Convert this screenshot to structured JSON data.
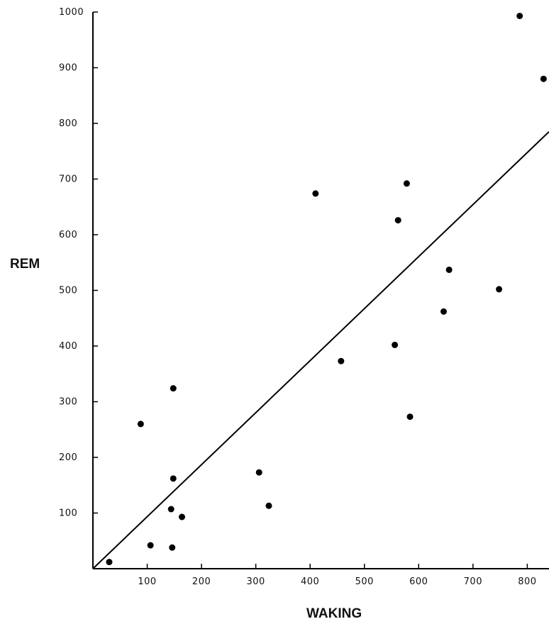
{
  "chart_data": {
    "type": "scatter",
    "title": "",
    "xlabel": "WAKING",
    "ylabel": "REM",
    "xlim": [
      0,
      840
    ],
    "ylim": [
      0,
      1000
    ],
    "xticks": [
      100,
      200,
      300,
      400,
      500,
      600,
      700,
      800
    ],
    "yticks": [
      100,
      200,
      300,
      400,
      500,
      600,
      700,
      800,
      900,
      1000
    ],
    "grid": false,
    "legend": "none",
    "points": [
      {
        "x": 30,
        "y": 12
      },
      {
        "x": 88,
        "y": 260
      },
      {
        "x": 106,
        "y": 42
      },
      {
        "x": 144,
        "y": 107
      },
      {
        "x": 146,
        "y": 38
      },
      {
        "x": 148,
        "y": 162
      },
      {
        "x": 148,
        "y": 324
      },
      {
        "x": 164,
        "y": 93
      },
      {
        "x": 306,
        "y": 173
      },
      {
        "x": 324,
        "y": 113
      },
      {
        "x": 410,
        "y": 674
      },
      {
        "x": 457,
        "y": 373
      },
      {
        "x": 556,
        "y": 402
      },
      {
        "x": 562,
        "y": 626
      },
      {
        "x": 578,
        "y": 692
      },
      {
        "x": 584,
        "y": 273
      },
      {
        "x": 646,
        "y": 462
      },
      {
        "x": 656,
        "y": 537
      },
      {
        "x": 748,
        "y": 502
      },
      {
        "x": 786,
        "y": 993
      },
      {
        "x": 830,
        "y": 880
      }
    ],
    "fit_line": {
      "x": [
        0,
        840
      ],
      "y": [
        0,
        785
      ]
    }
  }
}
